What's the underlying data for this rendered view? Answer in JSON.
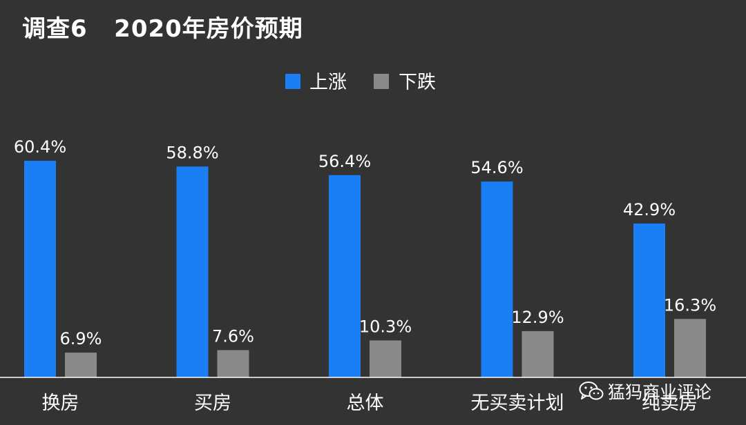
{
  "chart_data": {
    "type": "bar",
    "title": "调查6   2020年房价预期",
    "categories": [
      "换房",
      "买房",
      "总体",
      "无买卖计划",
      "纯卖房"
    ],
    "series": [
      {
        "name": "上涨",
        "color": "#1a7ef5",
        "values": [
          60.4,
          58.8,
          56.4,
          54.6,
          42.9
        ],
        "labels": [
          "60.4%",
          "58.8%",
          "56.4%",
          "54.6%",
          "42.9%"
        ]
      },
      {
        "name": "下跌",
        "color": "#8a8a8a",
        "values": [
          6.9,
          7.6,
          10.3,
          12.9,
          16.3
        ],
        "labels": [
          "6.9%",
          "7.6%",
          "10.3%",
          "12.9%",
          "16.3%"
        ]
      }
    ],
    "ylim": [
      0,
      70
    ],
    "grid": false,
    "legend": "top-center",
    "background": "#333333"
  },
  "watermark": {
    "text": "猛犸商业评论",
    "icon": "wechat-icon"
  }
}
